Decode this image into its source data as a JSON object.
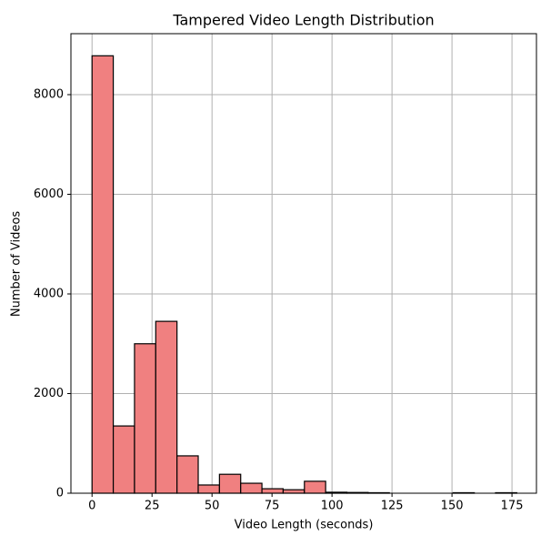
{
  "chart_data": {
    "type": "histogram",
    "title": "Tampered Video Length Distribution",
    "xlabel": "Video Length (seconds)",
    "ylabel": "Number of Videos",
    "bins": [
      0,
      8.85,
      17.7,
      26.55,
      35.4,
      44.25,
      53.1,
      61.95,
      70.8,
      79.65,
      88.5,
      97.35,
      106.2,
      115.05,
      123.9,
      132.75,
      141.6,
      150.45,
      159.3,
      168.15,
      177
    ],
    "values": [
      8780,
      1350,
      3000,
      3450,
      750,
      165,
      380,
      200,
      90,
      70,
      240,
      20,
      15,
      10,
      0,
      0,
      0,
      10,
      0,
      10
    ],
    "color": "#f08080",
    "edgecolor": "#000000",
    "xlim": [
      -8.8,
      185.2
    ],
    "ylim": [
      0,
      9224
    ],
    "xticks": [
      0,
      25,
      50,
      75,
      100,
      125,
      150,
      175
    ],
    "yticks": [
      0,
      2000,
      4000,
      6000,
      8000
    ],
    "grid": true
  }
}
